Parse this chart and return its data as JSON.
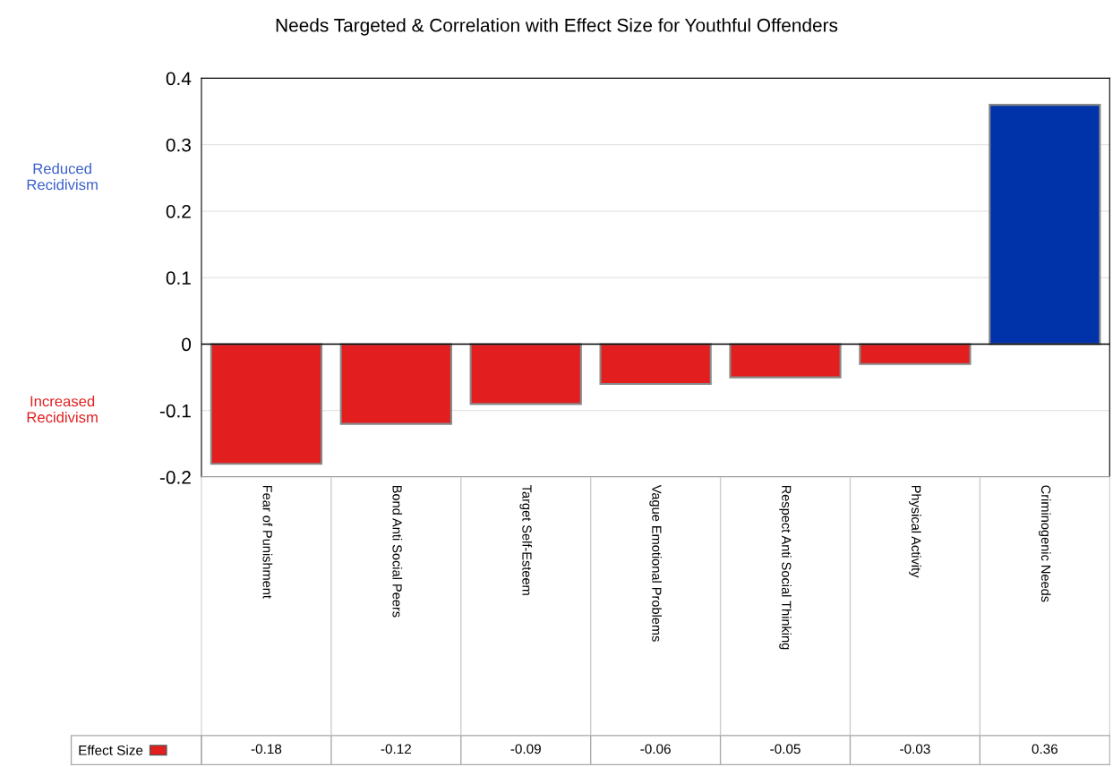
{
  "chart_data": {
    "type": "bar",
    "title": "Needs Targeted & Correlation with Effect Size for Youthful Offenders",
    "categories": [
      "Fear of Punishment",
      "Bond Anti Social Peers",
      "Target Self-Esteem",
      "Vague Emotional Problems",
      "Respect Anti Social Thinking",
      "Physical Activity",
      "Criminogenic Needs"
    ],
    "series": [
      {
        "name": "Effect Size",
        "color": "#e31e1e",
        "colors": [
          "#e31e1e",
          "#e31e1e",
          "#e31e1e",
          "#e31e1e",
          "#e31e1e",
          "#e31e1e",
          "#0033aa"
        ],
        "values": [
          -0.18,
          -0.12,
          -0.09,
          -0.06,
          -0.05,
          -0.03,
          0.36
        ]
      }
    ],
    "ylim": [
      -0.2,
      0.4
    ],
    "yticks": [
      -0.2,
      -0.1,
      0,
      0.1,
      0.2,
      0.3,
      0.4
    ],
    "grid": "y",
    "legend": "bottom left",
    "data_labels": true,
    "annotations": [
      "Reduced Recidivism",
      "Increased Recidivism"
    ]
  }
}
